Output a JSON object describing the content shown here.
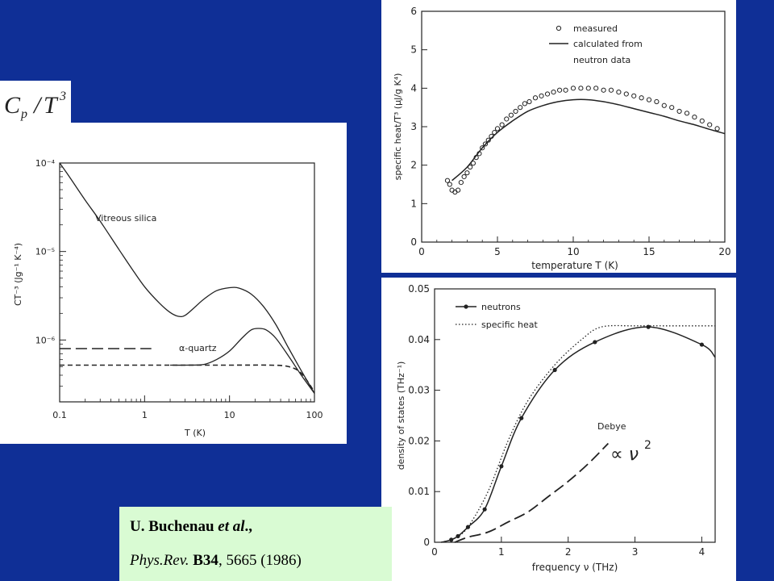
{
  "formula": {
    "C": "C",
    "p": "p",
    "slash": "/",
    "T": "T",
    "exp": "3"
  },
  "reference": {
    "line1": [
      "U. Buchenau ",
      "et al",
      "., "
    ],
    "journal": "Phys.Rev.",
    "volume": "B34",
    "rest": ", 5665 (1986)"
  },
  "colors": {
    "background": "#0f2f96",
    "reference_box": "#d9fbd3",
    "plot_ink": "#222222"
  },
  "chart_data": [
    {
      "id": "left",
      "type": "line",
      "title": "",
      "xlabel": "T (K)",
      "ylabel": "CT⁻³ (Jg⁻¹ K⁻⁴)",
      "xscale": "log",
      "yscale": "log",
      "xlim": [
        0.1,
        100
      ],
      "ylim": [
        2e-07,
        0.0001
      ],
      "x_tick_labels": [
        "0.1",
        "1",
        "10",
        "100"
      ],
      "y_tick_labels": [
        "10⁻⁴",
        "10⁻⁵",
        "10⁻⁶"
      ],
      "series": [
        {
          "name": "Vitreous silica",
          "style": "solid",
          "x": [
            0.1,
            0.13,
            0.2,
            0.3,
            0.5,
            0.7,
            1.0,
            1.5,
            2.0,
            2.5,
            3.0,
            4.0,
            5.0,
            7.0,
            10,
            13,
            18,
            25,
            35,
            50,
            70,
            100
          ],
          "y": [
            0.0001,
            7e-05,
            3.8e-05,
            2.2e-05,
            1.05e-05,
            6.5e-06,
            4e-06,
            2.6e-06,
            2.05e-06,
            1.85e-06,
            1.9e-06,
            2.4e-06,
            2.9e-06,
            3.6e-06,
            3.9e-06,
            3.85e-06,
            3.3e-06,
            2.4e-06,
            1.5e-06,
            8e-07,
            4.5e-07,
            2.5e-07
          ]
        },
        {
          "name": "α-quartz",
          "style": "solid",
          "x": [
            2,
            3,
            5,
            7,
            10,
            14,
            18,
            22,
            27,
            35,
            50,
            70,
            100
          ],
          "y": [
            5.2e-07,
            5.2e-07,
            5.3e-07,
            6e-07,
            7.5e-07,
            1.05e-06,
            1.3e-06,
            1.35e-06,
            1.3e-06,
            1.05e-06,
            6.5e-07,
            4e-07,
            2.5e-07
          ]
        },
        {
          "name": "",
          "style": "long-dash",
          "x": [
            0.1,
            1.2
          ],
          "y": [
            8e-07,
            8e-07
          ]
        },
        {
          "name": "",
          "style": "short-dash",
          "x": [
            0.1,
            1,
            10,
            30,
            50,
            70,
            100
          ],
          "y": [
            5.2e-07,
            5.2e-07,
            5.2e-07,
            5.2e-07,
            5e-07,
            4.2e-07,
            2.6e-07
          ]
        }
      ],
      "annotations": [
        "Vitreous silica",
        "α-quartz"
      ]
    },
    {
      "id": "top-right",
      "type": "scatter",
      "title": "",
      "xlabel": "temperature  T (K)",
      "ylabel": "specific heat/T³ (μJ/g K⁴)",
      "xlim": [
        0,
        20
      ],
      "ylim": [
        0,
        6
      ],
      "x_ticks": [
        0,
        5,
        10,
        15,
        20
      ],
      "y_ticks": [
        0,
        1,
        2,
        3,
        4,
        5,
        6
      ],
      "legend_position": "top-right",
      "series": [
        {
          "name": "measured",
          "marker": "open-circle",
          "x": [
            1.7,
            1.85,
            2.0,
            2.2,
            2.4,
            2.6,
            2.8,
            3.0,
            3.2,
            3.4,
            3.6,
            3.8,
            4.0,
            4.2,
            4.4,
            4.6,
            4.8,
            5.0,
            5.3,
            5.6,
            5.9,
            6.2,
            6.5,
            6.8,
            7.1,
            7.5,
            7.9,
            8.3,
            8.7,
            9.1,
            9.5,
            10.0,
            10.5,
            11.0,
            11.5,
            12.0,
            12.5,
            13.0,
            13.5,
            14.0,
            14.5,
            15.0,
            15.5,
            16.0,
            16.5,
            17.0,
            17.5,
            18.0,
            18.5,
            19.0,
            19.5
          ],
          "y": [
            1.6,
            1.5,
            1.35,
            1.3,
            1.35,
            1.55,
            1.7,
            1.8,
            1.95,
            2.05,
            2.2,
            2.3,
            2.45,
            2.55,
            2.65,
            2.75,
            2.85,
            2.95,
            3.05,
            3.2,
            3.3,
            3.4,
            3.5,
            3.6,
            3.65,
            3.75,
            3.8,
            3.85,
            3.9,
            3.95,
            3.95,
            4.0,
            4.0,
            4.0,
            4.0,
            3.95,
            3.95,
            3.9,
            3.85,
            3.8,
            3.75,
            3.7,
            3.65,
            3.55,
            3.5,
            3.4,
            3.35,
            3.25,
            3.15,
            3.05,
            2.95
          ]
        },
        {
          "name": "calculated from neutron data",
          "style": "solid-line",
          "x": [
            2,
            3,
            4,
            5,
            6,
            7,
            8,
            9,
            10,
            11,
            12,
            13,
            14,
            15,
            16,
            17,
            18,
            19,
            20
          ],
          "y": [
            1.6,
            1.95,
            2.45,
            2.85,
            3.15,
            3.4,
            3.55,
            3.65,
            3.7,
            3.7,
            3.65,
            3.57,
            3.47,
            3.37,
            3.27,
            3.15,
            3.05,
            2.93,
            2.82
          ]
        }
      ],
      "legend": [
        "measured",
        "calculated from",
        "neutron data"
      ]
    },
    {
      "id": "bottom-right",
      "type": "line",
      "title": "",
      "xlabel": "frequency  ν (THz)",
      "ylabel": "density  of states  (THz⁻¹)",
      "xlim": [
        0,
        4.2
      ],
      "ylim": [
        0,
        0.05
      ],
      "x_ticks": [
        0,
        1,
        2,
        3,
        4
      ],
      "y_ticks": [
        0,
        0.01,
        0.02,
        0.03,
        0.04,
        0.05
      ],
      "y_tick_labels": [
        "0",
        "0.01",
        "0.02",
        "0.03",
        "0.04",
        "0.05"
      ],
      "legend_position": "top-left",
      "series": [
        {
          "name": "neutrons",
          "style": "solid-dots",
          "x": [
            0.1,
            0.25,
            0.35,
            0.5,
            0.75,
            1.0,
            1.3,
            1.8,
            2.4,
            3.2,
            4.0,
            4.2
          ],
          "y": [
            0.0,
            0.0005,
            0.0012,
            0.003,
            0.0065,
            0.015,
            0.0245,
            0.034,
            0.0395,
            0.0425,
            0.039,
            0.0365
          ]
        },
        {
          "name": "specific heat",
          "style": "dotted",
          "x": [
            0.1,
            0.3,
            0.5,
            0.8,
            1.1,
            1.4,
            1.8,
            2.2,
            2.5,
            3.0,
            3.5,
            4.2
          ],
          "y": [
            0.0,
            0.0008,
            0.003,
            0.01,
            0.02,
            0.028,
            0.035,
            0.04,
            0.0425,
            0.0427,
            0.0427,
            0.0427
          ]
        },
        {
          "name": "Debye",
          "style": "long-dash",
          "x": [
            0.3,
            0.5,
            0.8,
            1.1,
            1.4,
            1.7,
            2.0,
            2.3,
            2.6
          ],
          "y": [
            0.0,
            0.001,
            0.002,
            0.004,
            0.006,
            0.009,
            0.012,
            0.0155,
            0.0195
          ]
        }
      ],
      "legend": [
        "neutrons",
        "specific heat"
      ],
      "annotations": [
        "Debye",
        "∝ ν",
        "2"
      ]
    }
  ]
}
